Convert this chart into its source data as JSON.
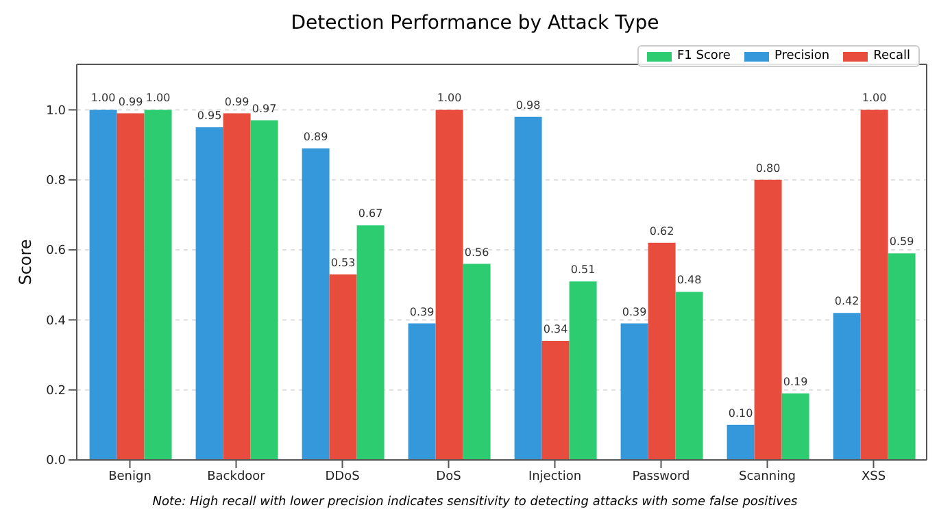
{
  "chart_data": {
    "type": "bar",
    "title": "Detection Performance by Attack Type",
    "ylabel": "Score",
    "categories": [
      "Benign",
      "Backdoor",
      "DDoS",
      "DoS",
      "Injection",
      "Password",
      "Scanning",
      "XSS"
    ],
    "series": [
      {
        "name": "Precision",
        "color": "#3498db",
        "values": [
          1.0,
          0.95,
          0.89,
          0.39,
          0.98,
          0.39,
          0.1,
          0.42
        ],
        "value_labels": [
          "1.00",
          "0.95",
          "0.89",
          "0.39",
          "0.98",
          "0.39",
          "0.10",
          "0.42"
        ]
      },
      {
        "name": "Recall",
        "color": "#e74c3c",
        "values": [
          0.99,
          0.99,
          0.53,
          1.0,
          0.34,
          0.62,
          0.8,
          1.0
        ],
        "value_labels": [
          "0.99",
          "0.99",
          "0.53",
          "1.00",
          "0.34",
          "0.62",
          "0.80",
          "1.00"
        ]
      },
      {
        "name": "F1 Score",
        "color": "#2ecc71",
        "values": [
          1.0,
          0.97,
          0.67,
          0.56,
          0.51,
          0.48,
          0.19,
          0.59
        ],
        "value_labels": [
          "1.00",
          "0.97",
          "0.67",
          "0.56",
          "0.51",
          "0.48",
          "0.19",
          "0.59"
        ]
      }
    ],
    "ylim": [
      0,
      1.13
    ],
    "yticks": [
      {
        "value": 0,
        "label": "0.0"
      },
      {
        "value": 0.2,
        "label": "0.2"
      },
      {
        "value": 0.4,
        "label": "0.4"
      },
      {
        "value": 0.6,
        "label": "0.6"
      },
      {
        "value": 0.8,
        "label": "0.8"
      },
      {
        "value": 1,
        "label": "1.0"
      }
    ],
    "grid": "y",
    "legend": "top right",
    "annotations": [
      "Note: High recall with lower precision indicates sensitivity to detecting attacks with some false positives"
    ]
  }
}
